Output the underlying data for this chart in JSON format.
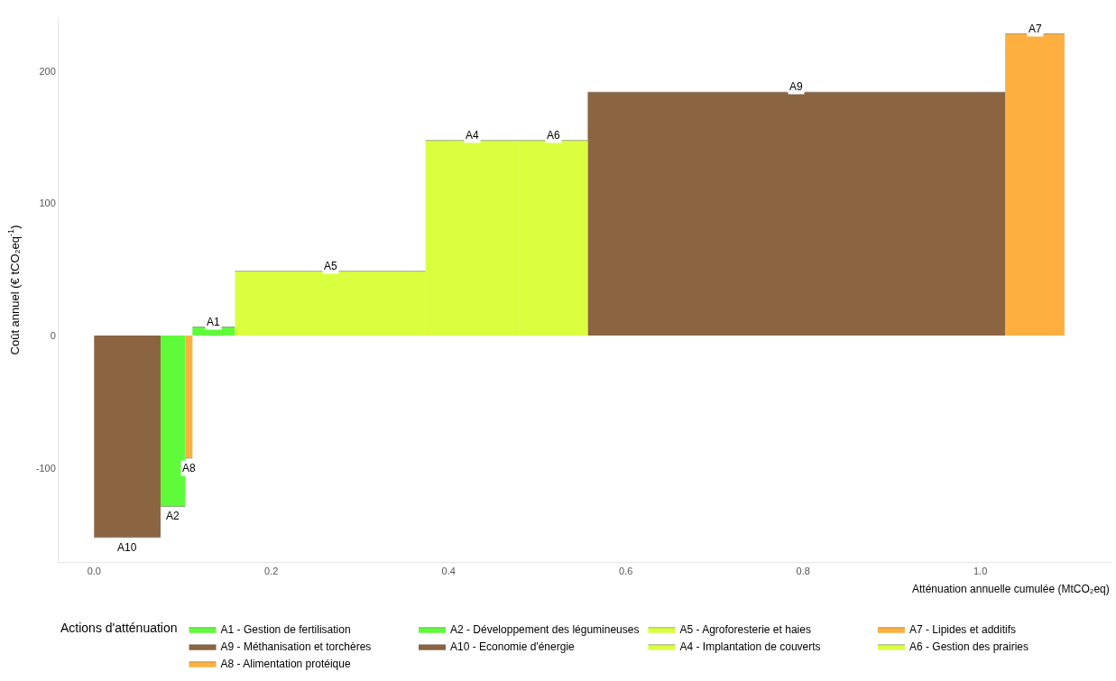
{
  "chart_data": {
    "type": "area",
    "ylabel": "Coût annuel (€ tCO₂eq$^{-1}$)",
    "xlabel": "Atténuation annuelle cumulée (MtCO₂eq)",
    "legend_title": "Actions d'atténuation",
    "xlim": [
      -0.04,
      1.148
    ],
    "ylim": [
      -171,
      240
    ],
    "xticks": [
      {
        "value": 0,
        "label": "0.0"
      },
      {
        "value": 0.2,
        "label": "0.2"
      },
      {
        "value": 0.4,
        "label": "0.4"
      },
      {
        "value": 0.6,
        "label": "0.6"
      },
      {
        "value": 0.8,
        "label": "0.8"
      },
      {
        "value": 1.0,
        "label": "1.0"
      }
    ],
    "yticks": [
      -100,
      0,
      100,
      200
    ],
    "legend": "bottom",
    "series": [
      {
        "name": "A1 - Gestion de fertilisation",
        "color": "#5ffb3b",
        "x": [
          0.111,
          0.159
        ],
        "values": [
          6.5,
          6.5
        ]
      },
      {
        "name": "A2 - Développement des légumineuses",
        "color": "#5ffb3b",
        "x": [
          0.075,
          0.103
        ],
        "values": [
          -129,
          -129
        ]
      },
      {
        "name": "A5 - Agroforesterie et haies",
        "color": "#d9ff3f",
        "x": [
          0.159,
          0.374
        ],
        "values": [
          48.7,
          48.7
        ]
      },
      {
        "name": "A7 - Lipides et additifs",
        "color": "#fdb03f",
        "x": [
          1.028,
          1.095
        ],
        "values": [
          228,
          228
        ]
      },
      {
        "name": "A9 - Méthanisation et torchères",
        "color": "#8b6441",
        "x": [
          0.557,
          1.028
        ],
        "values": [
          184,
          184
        ]
      },
      {
        "name": "A10 - Economie d'énergie",
        "color": "#8b6441",
        "x": [
          0.0,
          0.075
        ],
        "values": [
          -152.5,
          -152.5
        ]
      },
      {
        "name": "A4 - Implantation de couverts",
        "color": "#d9ff3f",
        "x": [
          0.374,
          0.48
        ],
        "values": [
          147.5,
          147.5
        ]
      },
      {
        "name": "A6 - Gestion des prairies",
        "color": "#d9ff3f",
        "x": [
          0.48,
          0.557
        ],
        "values": [
          147.5,
          147.5
        ]
      },
      {
        "name": "A8 - Alimentation protéique",
        "color": "#fdb03f",
        "x": [
          0.103,
          0.111
        ],
        "values": [
          -92.5,
          -92.5
        ]
      }
    ],
    "annotations": [
      {
        "text": "A10",
        "x": 0.0375,
        "y": -152.5
      },
      {
        "text": "A2",
        "x": 0.089,
        "y": -129
      },
      {
        "text": "A8",
        "x": 0.107,
        "y": -92.5
      },
      {
        "text": "A1",
        "x": 0.135,
        "y": 6.5
      },
      {
        "text": "A5",
        "x": 0.2665,
        "y": 48.7
      },
      {
        "text": "A4",
        "x": 0.427,
        "y": 147.5
      },
      {
        "text": "A6",
        "x": 0.5185,
        "y": 147.5
      },
      {
        "text": "A9",
        "x": 0.7925,
        "y": 184
      },
      {
        "text": "A7",
        "x": 1.0615,
        "y": 228
      }
    ]
  }
}
